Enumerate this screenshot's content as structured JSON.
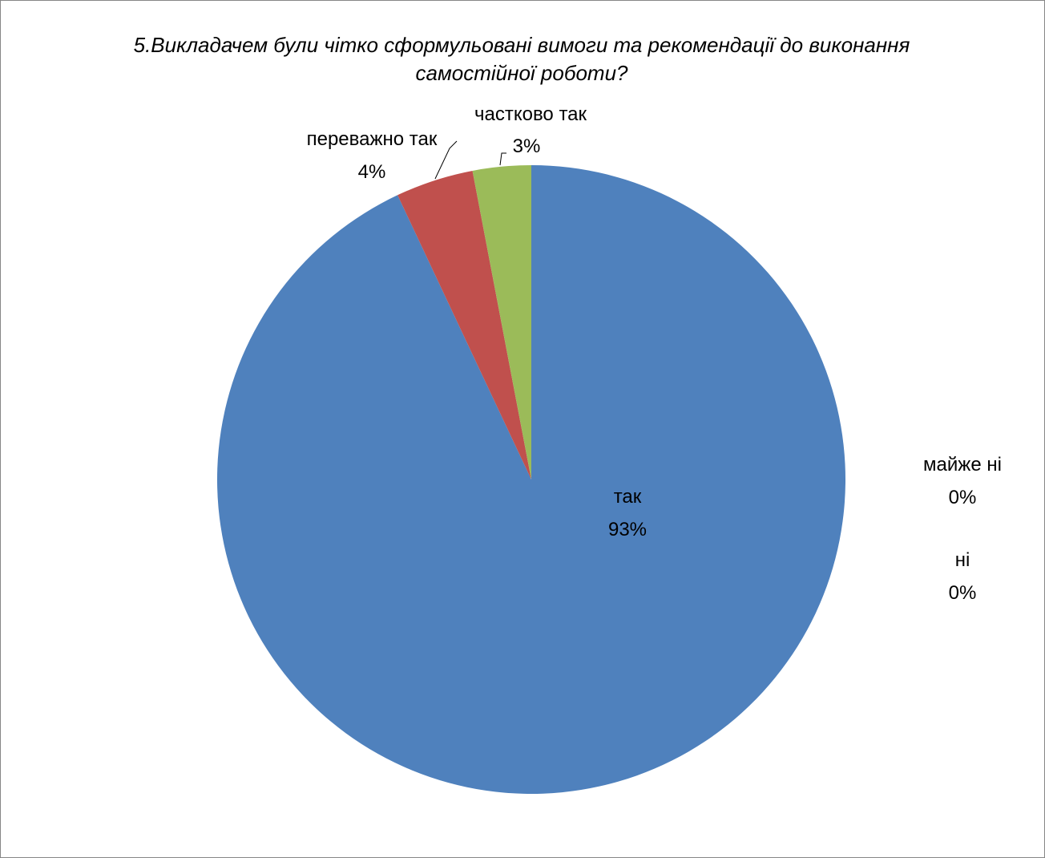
{
  "chart_data": {
    "type": "pie",
    "title": "5.Викладачем були чітко сформульовані вимоги та рекомендації до виконання самостійної роботи?",
    "slices": [
      {
        "name": "так",
        "value": 93,
        "label": "93%",
        "color": "#4F81BD"
      },
      {
        "name": "переважно так",
        "value": 4,
        "label": "4%",
        "color": "#C0504D"
      },
      {
        "name": "частково так",
        "value": 3,
        "label": "3%",
        "color": "#9BBB59"
      },
      {
        "name": "майже ні",
        "value": 0,
        "label": "0%",
        "color": "#8064A2"
      },
      {
        "name": "ні",
        "value": 0,
        "label": "0%",
        "color": "#4BACC6"
      }
    ],
    "legend": "none",
    "start_angle": "12 o'clock",
    "direction": "clockwise"
  }
}
